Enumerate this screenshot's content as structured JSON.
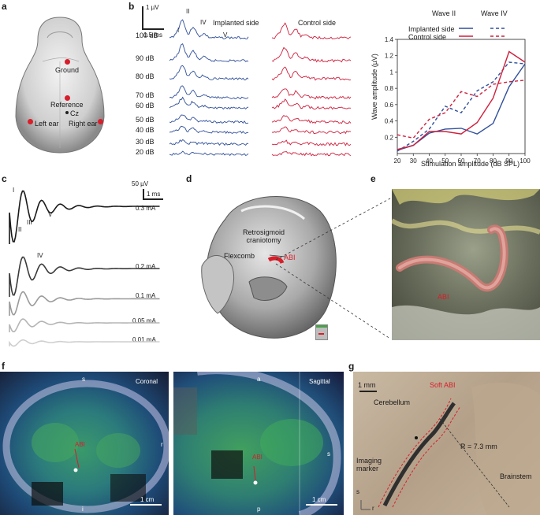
{
  "panels": {
    "a": {
      "letter": "a",
      "labels": {
        "ground": "Ground",
        "reference": "Reference",
        "cz": "Cz",
        "left_ear": "Left ear",
        "right_ear": "Right ear"
      },
      "colors": {
        "electrode": "#d81e2a"
      }
    },
    "b": {
      "letter": "b",
      "scale_v": "1 µV",
      "scale_t": "1.5 ms",
      "implanted_title": "Implanted side",
      "control_title": "Control side",
      "wave_labels": [
        "I",
        "II",
        "IV",
        "V"
      ],
      "db_levels": [
        "100 dB",
        "90 dB",
        "80 dB",
        "70 dB",
        "60 dB",
        "50 dB",
        "40 dB",
        "30 dB",
        "20 dB"
      ],
      "colors": {
        "implanted": "#2f4f9b",
        "control": "#d01f3c"
      }
    },
    "c": {
      "letter": "c",
      "scale_v": "50 µV",
      "scale_t": "1 ms",
      "wave_labels": [
        "I",
        "II",
        "III",
        "IV",
        "V"
      ],
      "currents": [
        "0.3 mA",
        "0.2 mA",
        "0.1 mA",
        "0.05 mA",
        "0.01 mA"
      ],
      "colors": [
        "#1a1a1a",
        "#3a3a3a",
        "#9a9a9a",
        "#b5b5b5",
        "#cfcfcf"
      ]
    },
    "d": {
      "letter": "d",
      "labels": {
        "craniotomy": "Retrosigmoid\ncraniotomy",
        "flexcomb": "Flexcomb",
        "abi": "ABI"
      },
      "colors": {
        "abi": "#d81e2a"
      }
    },
    "e": {
      "letter": "e",
      "labels": {
        "abi": "ABI"
      }
    },
    "f": {
      "letter": "f",
      "coronal": {
        "title": "Coronal",
        "s": "s",
        "i": "i",
        "r": "r",
        "abi": "ABI",
        "scale": "1 cm"
      },
      "sagittal": {
        "title": "Sagittal",
        "a": "a",
        "p": "p",
        "s": "s",
        "abi": "ABI",
        "scale": "1 cm"
      }
    },
    "g": {
      "letter": "g",
      "labels": {
        "scale": "1 mm",
        "cerebellum": "Cerebellum",
        "soft_abi": "Soft ABI",
        "radius": "R = 7.3 mm",
        "imaging_marker": "Imaging\nmarker",
        "brainstem": "Brainstem",
        "s": "s",
        "r": "r"
      }
    }
  },
  "chart_data": {
    "type": "line",
    "title": "",
    "xlabel": "Stimulation amplitude (dB SPL)",
    "ylabel": "Wave amplitude (µV)",
    "xlim": [
      20,
      100
    ],
    "ylim": [
      0,
      1.4
    ],
    "x_ticks": [
      20,
      30,
      40,
      50,
      60,
      70,
      80,
      90,
      100
    ],
    "y_ticks": [
      0.2,
      0.4,
      0.6,
      0.8,
      1.0,
      1.2,
      1.4
    ],
    "legend": {
      "placement": "top",
      "column_titles": [
        "Wave II",
        "Wave IV"
      ],
      "row_labels": [
        "Implanted side",
        "Control side"
      ]
    },
    "x": [
      20,
      30,
      40,
      50,
      60,
      70,
      80,
      90,
      100
    ],
    "series": [
      {
        "group": "Implanted side",
        "wave": "Wave II",
        "color": "#2f4f9b",
        "dash": false,
        "values": [
          0.04,
          0.1,
          0.25,
          0.3,
          0.31,
          0.24,
          0.37,
          0.82,
          1.1
        ]
      },
      {
        "group": "Implanted side",
        "wave": "Wave IV",
        "color": "#2f4f9b",
        "dash": true,
        "values": [
          0.03,
          0.15,
          0.3,
          0.58,
          0.5,
          0.77,
          0.88,
          1.12,
          1.1
        ]
      },
      {
        "group": "Control side",
        "wave": "Wave II",
        "color": "#d01f3c",
        "dash": false,
        "values": [
          0.05,
          0.1,
          0.27,
          0.27,
          0.24,
          0.38,
          0.68,
          1.25,
          1.12
        ]
      },
      {
        "group": "Control side",
        "wave": "Wave IV",
        "color": "#d01f3c",
        "dash": true,
        "values": [
          0.23,
          0.19,
          0.42,
          0.5,
          0.76,
          0.7,
          0.85,
          0.88,
          0.9
        ]
      }
    ]
  }
}
